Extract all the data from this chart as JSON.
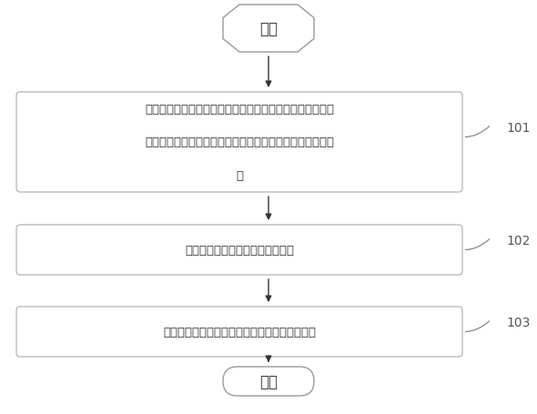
{
  "bg_color": "#ffffff",
  "fig_bg": "#ffffff",
  "start_text": "开始",
  "end_text": "结束",
  "box1_line1": "接收目标车辆在第一采样时刻发送的第一驾驶行为数据，并",
  "box1_line2": "依据所述第一驾驶行为数据确定所述目标车辆为危险驾驶车",
  "box1_line3": "辆",
  "box2_text": "确定所述目标车辆的历史合规指标",
  "box3_text": "依据所述目标车辆的历史合规指标进行告警提示",
  "label1": "101",
  "label2": "102",
  "label3": "103",
  "box_fill": "#ffffff",
  "box_edge": "#888888",
  "arrow_color": "#333333",
  "text_color": "#333333",
  "label_color": "#555555",
  "start_edge": "#999999",
  "font_size": 9.5
}
